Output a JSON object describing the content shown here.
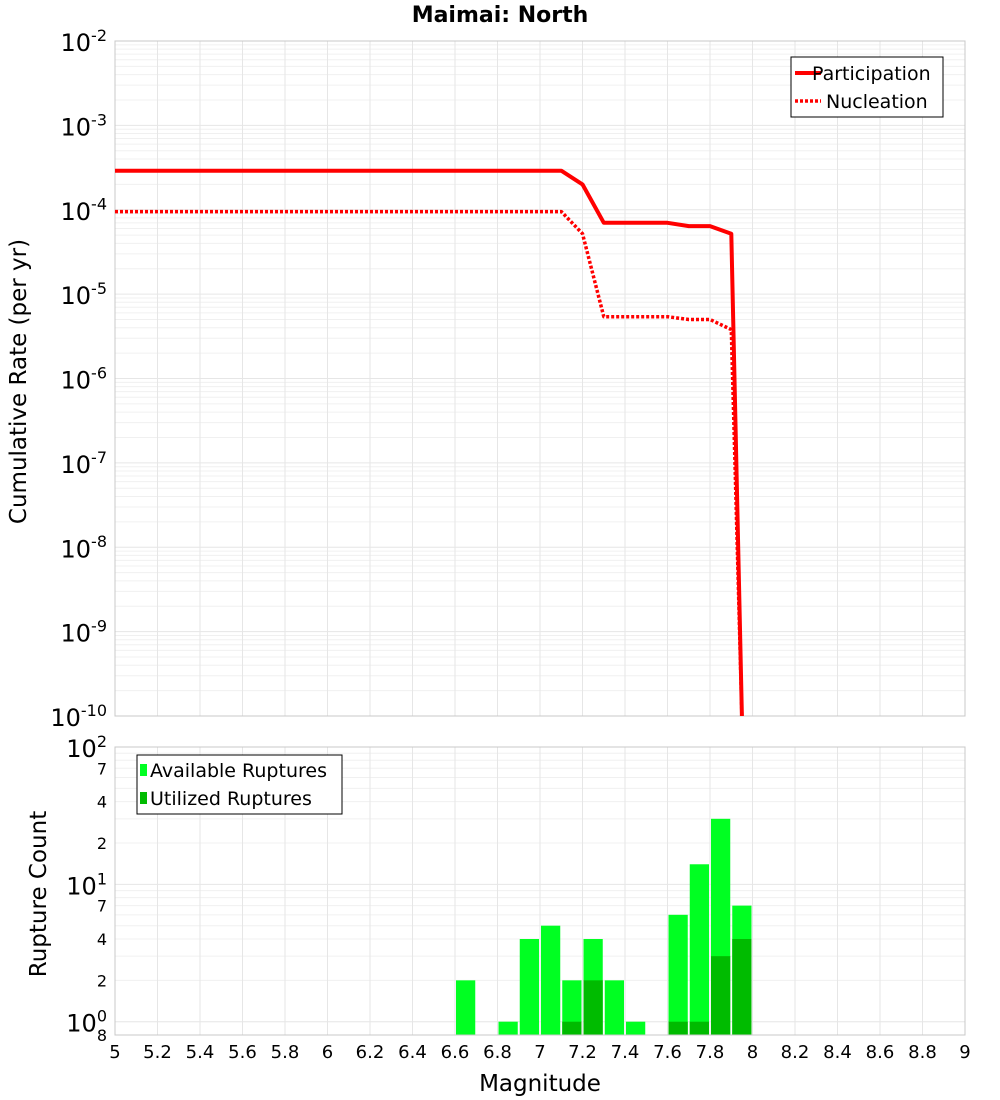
{
  "chart_data": [
    {
      "type": "line",
      "title": "Maimai: North",
      "ylabel": "Cumulative Rate (per yr)",
      "xlabel": "",
      "yscale": "log",
      "xlim": [
        5,
        9
      ],
      "ylim": [
        1e-10,
        0.01
      ],
      "y_ticks": [
        {
          "base": "10",
          "exp": "-10",
          "value": 1e-10
        },
        {
          "base": "10",
          "exp": "-9",
          "value": 1e-09
        },
        {
          "base": "10",
          "exp": "-8",
          "value": 1e-08
        },
        {
          "base": "10",
          "exp": "-7",
          "value": 1e-07
        },
        {
          "base": "10",
          "exp": "-6",
          "value": 1e-06
        },
        {
          "base": "10",
          "exp": "-5",
          "value": 1e-05
        },
        {
          "base": "10",
          "exp": "-4",
          "value": 0.0001
        },
        {
          "base": "10",
          "exp": "-3",
          "value": 0.001
        },
        {
          "base": "10",
          "exp": "-2",
          "value": 0.01
        }
      ],
      "legend_position": "top-right",
      "series": [
        {
          "name": "Participation",
          "style": "solid",
          "color": "#ff0000",
          "x": [
            5.0,
            7.1,
            7.2,
            7.3,
            7.4,
            7.5,
            7.6,
            7.7,
            7.8,
            7.9,
            7.95
          ],
          "y": [
            0.00029,
            0.00029,
            0.0002,
            7e-05,
            7e-05,
            7e-05,
            7e-05,
            6.4e-05,
            6.4e-05,
            5.2e-05,
            1e-10
          ]
        },
        {
          "name": "Nucleation",
          "style": "dotted",
          "color": "#ff0000",
          "x": [
            5.0,
            7.1,
            7.2,
            7.3,
            7.4,
            7.5,
            7.6,
            7.7,
            7.8,
            7.9,
            7.95
          ],
          "y": [
            9.5e-05,
            9.5e-05,
            5.2e-05,
            5.4e-06,
            5.4e-06,
            5.4e-06,
            5.4e-06,
            5e-06,
            5e-06,
            3.8e-06,
            1e-10
          ]
        }
      ]
    },
    {
      "type": "bar",
      "title": "",
      "xlabel": "Magnitude",
      "ylabel": "Rupture Count",
      "yscale": "log",
      "xlim": [
        5,
        9
      ],
      "ylim": [
        0.8,
        100
      ],
      "x_ticks": [
        "5",
        "5.2",
        "5.4",
        "5.6",
        "5.8",
        "6",
        "6.2",
        "6.4",
        "6.6",
        "6.8",
        "7",
        "7.2",
        "7.4",
        "7.6",
        "7.8",
        "8",
        "8.2",
        "8.4",
        "8.6",
        "8.8",
        "9"
      ],
      "y_ticks": [
        {
          "base": "",
          "exp": "",
          "label": "8",
          "value": 0.8
        },
        {
          "base": "10",
          "exp": "0",
          "label": "",
          "value": 1
        },
        {
          "base": "",
          "exp": "",
          "label": "2",
          "value": 2
        },
        {
          "base": "",
          "exp": "",
          "label": "4",
          "value": 4
        },
        {
          "base": "",
          "exp": "",
          "label": "7",
          "value": 7
        },
        {
          "base": "10",
          "exp": "1",
          "label": "",
          "value": 10
        },
        {
          "base": "",
          "exp": "",
          "label": "2",
          "value": 20
        },
        {
          "base": "",
          "exp": "",
          "label": "4",
          "value": 40
        },
        {
          "base": "",
          "exp": "",
          "label": "7",
          "value": 70
        },
        {
          "base": "10",
          "exp": "2",
          "label": "",
          "value": 100
        }
      ],
      "legend_position": "top-left",
      "categories": [
        6.65,
        6.85,
        6.95,
        7.05,
        7.15,
        7.25,
        7.35,
        7.45,
        7.65,
        7.75,
        7.85,
        7.95
      ],
      "series": [
        {
          "name": "Available Ruptures",
          "color": "#00ff22",
          "values": [
            2,
            1,
            4,
            5,
            2,
            4,
            2,
            1,
            6,
            14,
            30,
            7
          ]
        },
        {
          "name": "Utilized Ruptures",
          "color": "#00bb00",
          "values": [
            0,
            0,
            0,
            0,
            1,
            2,
            0,
            0,
            1,
            1,
            3,
            4
          ]
        }
      ]
    }
  ]
}
